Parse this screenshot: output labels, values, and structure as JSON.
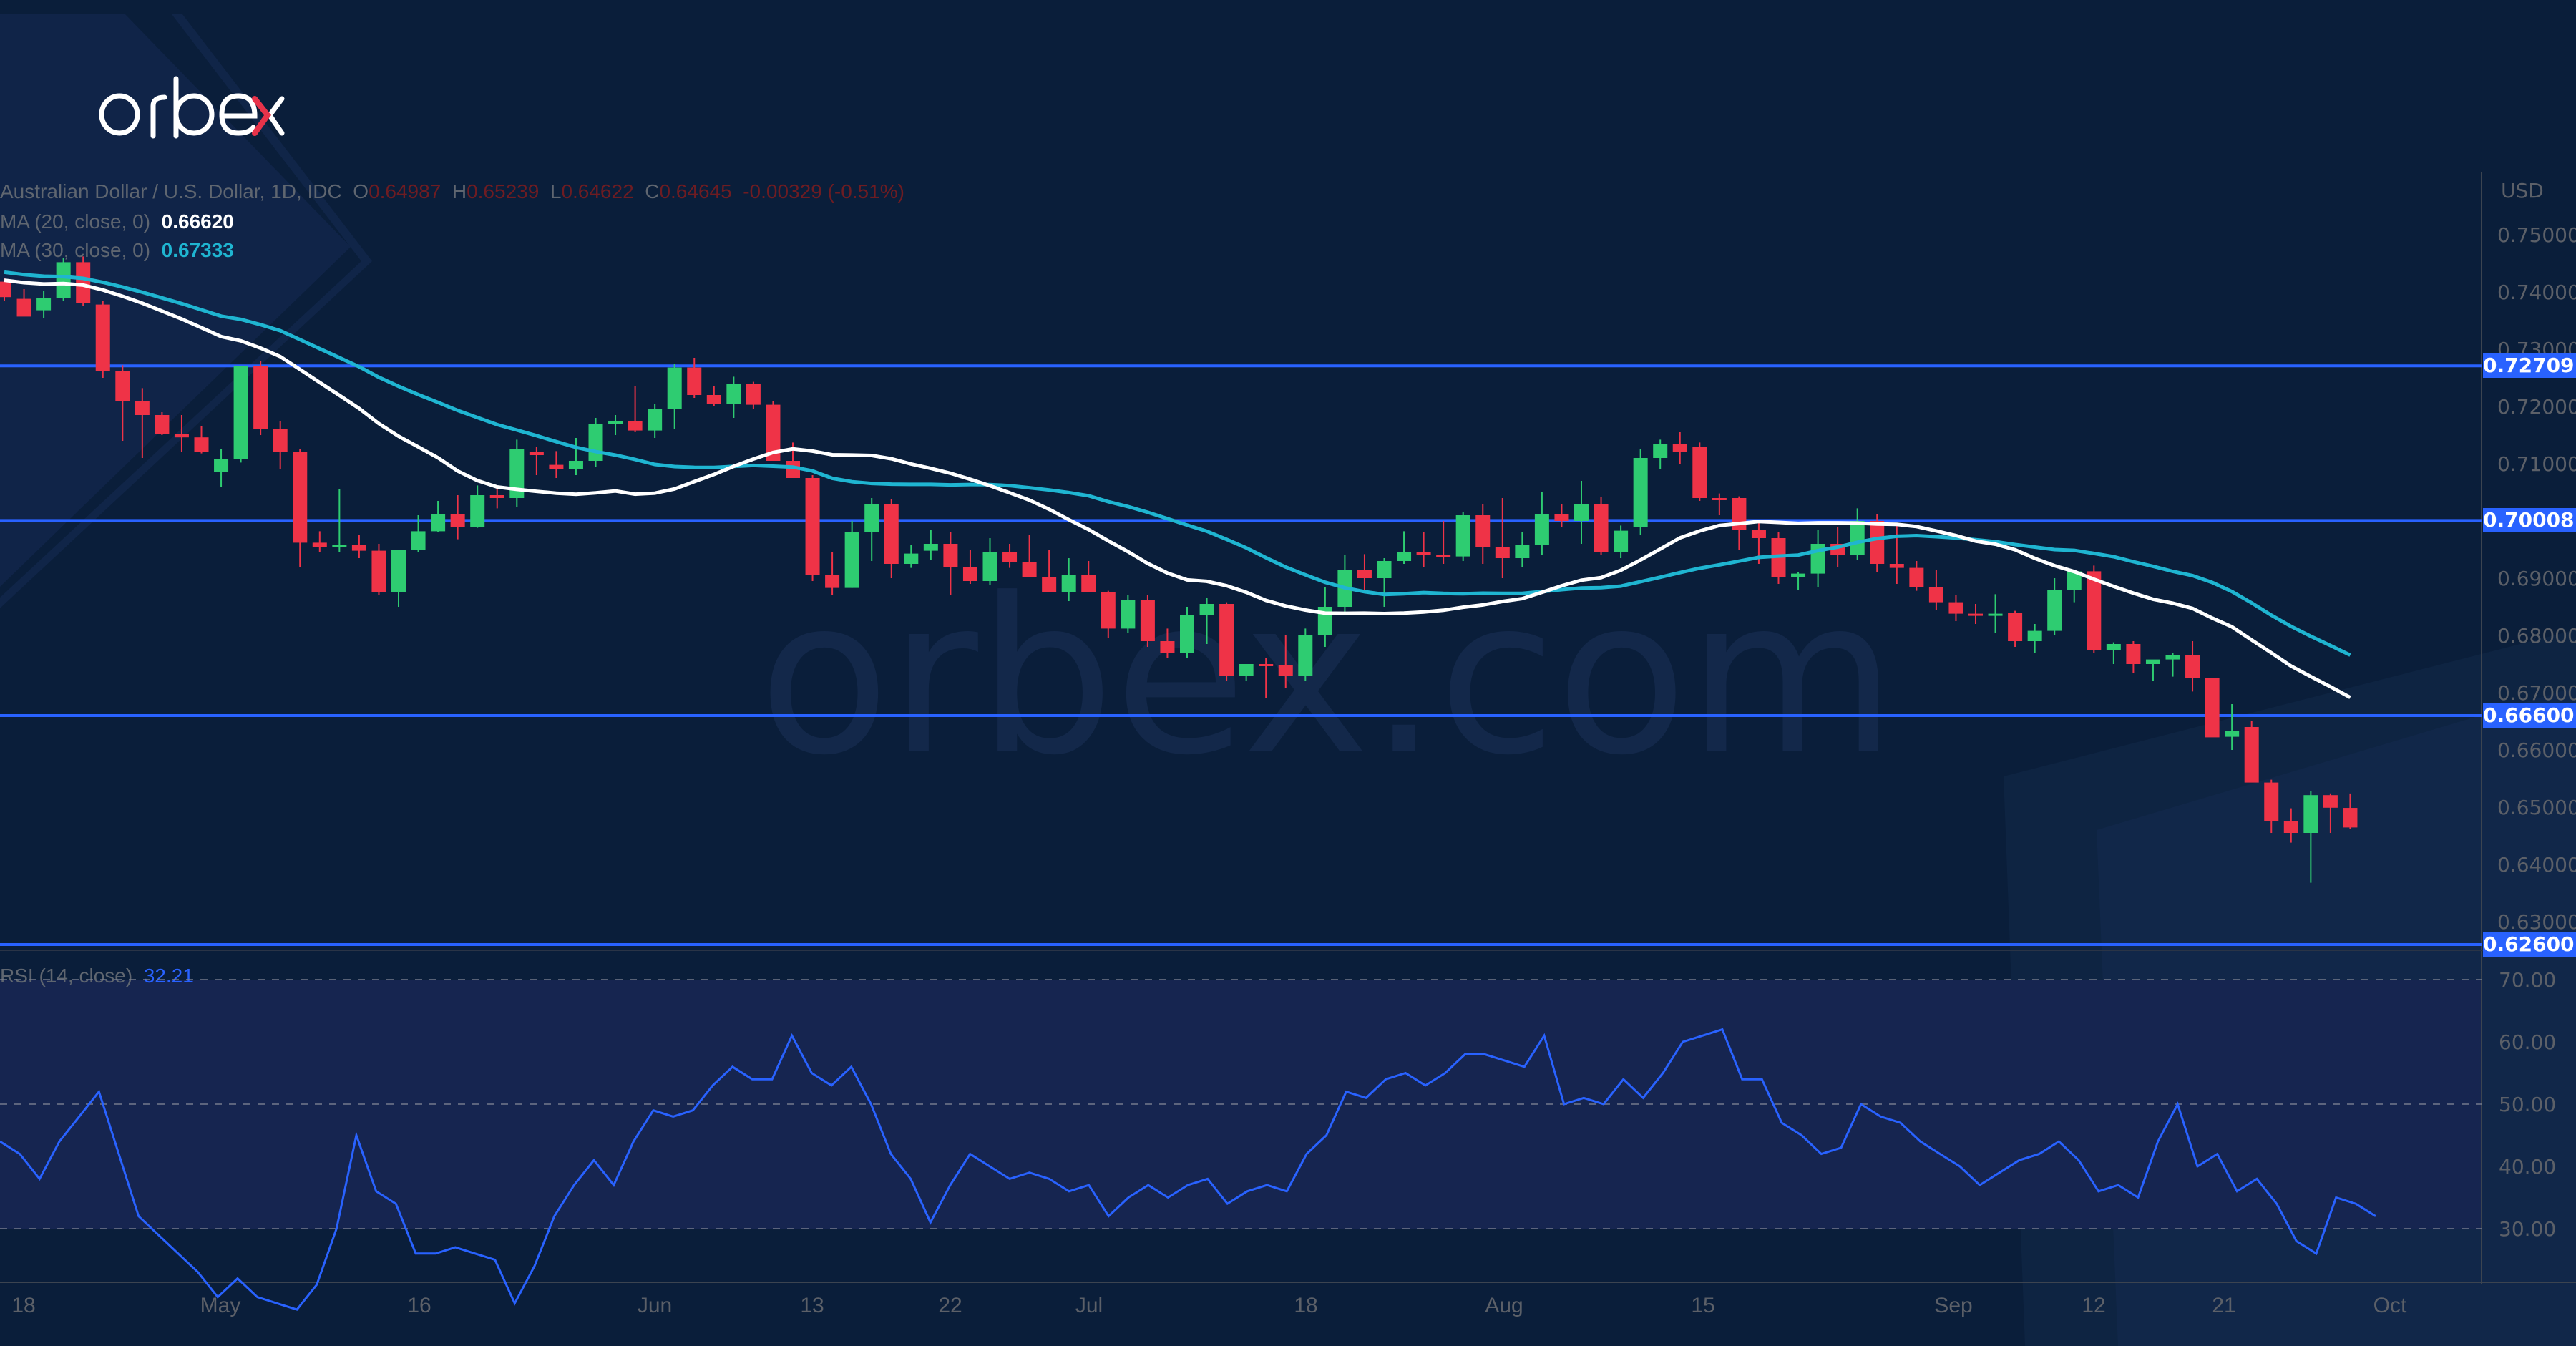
{
  "brand": {
    "name": "orbex",
    "watermark": "orbex.com",
    "accent": "#e8334a"
  },
  "legend": {
    "symbol": "Australian Dollar / U.S. Dollar, 1D, IDC",
    "open_label": "O",
    "open": "0.64987",
    "high_label": "H",
    "high": "0.65239",
    "low_label": "L",
    "low": "0.64622",
    "close_label": "C",
    "close": "0.64645",
    "change": "-0.00329 (-0.51%)",
    "ma20_label": "MA (20, close, 0)",
    "ma20_value": "0.66620",
    "ma30_label": "MA (30, close, 0)",
    "ma30_value": "0.67333",
    "rsi_label": "RSI (14, close)",
    "rsi_value": "32.21"
  },
  "price_axis": {
    "currency": "USD",
    "ticks": [
      "0.75000",
      "0.74000",
      "0.73000",
      "0.72000",
      "0.71000",
      "0.69000",
      "0.68000",
      "0.67000",
      "0.66000",
      "0.65000",
      "0.64000",
      "0.63000"
    ],
    "levels": [
      "0.72709",
      "0.70008",
      "0.66600",
      "0.62600"
    ]
  },
  "rsi_axis": {
    "ticks": [
      "70.00",
      "60.00",
      "50.00",
      "40.00",
      "30.00"
    ]
  },
  "time_axis": {
    "labels": [
      "18",
      "May",
      "16",
      "Jun",
      "13",
      "22",
      "Jul",
      "18",
      "Aug",
      "15",
      "Sep",
      "12",
      "21",
      "Oct"
    ]
  },
  "colors": {
    "up": "#2ecc71",
    "down": "#ef3347",
    "ma20": "#ffffff",
    "ma30": "#1fb5d1",
    "rsi": "#2962ff",
    "level": "#2962ff",
    "background": "#0a1e3a"
  },
  "chart_data": [
    {
      "type": "candlestick",
      "title": "Australian Dollar / U.S. Dollar, 1D, IDC",
      "ylabel": "USD",
      "ylim": [
        0.625,
        0.755
      ],
      "x_tick_labels": [
        "18",
        "May",
        "16",
        "Jun",
        "13",
        "22",
        "Jul",
        "18",
        "Aug",
        "15",
        "Sep",
        "12",
        "21",
        "Oct"
      ],
      "horizontal_levels": [
        0.72709,
        0.70008,
        0.666,
        0.626
      ],
      "last_ohlc": {
        "open": 0.64987,
        "high": 0.65239,
        "low": 0.64622,
        "close": 0.64645,
        "change": -0.00329,
        "change_pct": -0.51
      },
      "ohlc": [
        [
          0.7418,
          0.7425,
          0.7385,
          0.7391
        ],
        [
          0.7388,
          0.7405,
          0.7368,
          0.7357
        ],
        [
          0.7368,
          0.7402,
          0.7355,
          0.739
        ],
        [
          0.739,
          0.746,
          0.7385,
          0.7452
        ],
        [
          0.7452,
          0.7462,
          0.7375,
          0.738
        ],
        [
          0.7378,
          0.7385,
          0.725,
          0.7262
        ],
        [
          0.7262,
          0.7272,
          0.714,
          0.721
        ],
        [
          0.721,
          0.7232,
          0.711,
          0.7185
        ],
        [
          0.7185,
          0.719,
          0.715,
          0.7152
        ],
        [
          0.7152,
          0.7185,
          0.712,
          0.7146
        ],
        [
          0.7146,
          0.7165,
          0.7118,
          0.712
        ],
        [
          0.7085,
          0.7125,
          0.706,
          0.7108
        ],
        [
          0.7108,
          0.721,
          0.7102,
          0.727
        ],
        [
          0.727,
          0.728,
          0.715,
          0.716
        ],
        [
          0.716,
          0.7175,
          0.709,
          0.712
        ],
        [
          0.712,
          0.7125,
          0.692,
          0.6962
        ],
        [
          0.6962,
          0.6982,
          0.6945,
          0.6955
        ],
        [
          0.6955,
          0.7055,
          0.6945,
          0.6958
        ],
        [
          0.6958,
          0.6975,
          0.6935,
          0.6948
        ],
        [
          0.6948,
          0.696,
          0.687,
          0.6875
        ],
        [
          0.6875,
          0.6922,
          0.685,
          0.695
        ],
        [
          0.695,
          0.701,
          0.6945,
          0.6982
        ],
        [
          0.6982,
          0.7035,
          0.698,
          0.7012
        ],
        [
          0.7012,
          0.7045,
          0.6968,
          0.699
        ],
        [
          0.699,
          0.7062,
          0.6988,
          0.7045
        ],
        [
          0.7045,
          0.706,
          0.7022,
          0.704
        ],
        [
          0.704,
          0.7142,
          0.7025,
          0.7125
        ],
        [
          0.712,
          0.713,
          0.708,
          0.7115
        ],
        [
          0.7098,
          0.7122,
          0.7075,
          0.709
        ],
        [
          0.709,
          0.7145,
          0.708,
          0.7105
        ],
        [
          0.7105,
          0.718,
          0.7095,
          0.717
        ],
        [
          0.717,
          0.7185,
          0.715,
          0.7175
        ],
        [
          0.7175,
          0.7235,
          0.7155,
          0.7158
        ],
        [
          0.7158,
          0.7205,
          0.7145,
          0.7195
        ],
        [
          0.7195,
          0.7275,
          0.716,
          0.7268
        ],
        [
          0.7268,
          0.7285,
          0.7215,
          0.722
        ],
        [
          0.722,
          0.7235,
          0.72,
          0.7205
        ],
        [
          0.7205,
          0.7252,
          0.718,
          0.724
        ],
        [
          0.724,
          0.7243,
          0.7195,
          0.7203
        ],
        [
          0.7203,
          0.721,
          0.7105,
          0.7105
        ],
        [
          0.7105,
          0.7137,
          0.708,
          0.7075
        ],
        [
          0.7075,
          0.708,
          0.6895,
          0.6905
        ],
        [
          0.6905,
          0.6945,
          0.687,
          0.6883
        ],
        [
          0.6883,
          0.7,
          0.6883,
          0.698
        ],
        [
          0.698,
          0.704,
          0.693,
          0.703
        ],
        [
          0.703,
          0.7038,
          0.69,
          0.6925
        ],
        [
          0.6925,
          0.6958,
          0.6918,
          0.6943
        ],
        [
          0.6948,
          0.6985,
          0.6932,
          0.696
        ],
        [
          0.696,
          0.698,
          0.687,
          0.692
        ],
        [
          0.692,
          0.695,
          0.689,
          0.6895
        ],
        [
          0.6895,
          0.697,
          0.6888,
          0.6945
        ],
        [
          0.6945,
          0.696,
          0.6918,
          0.6928
        ],
        [
          0.6928,
          0.6975,
          0.6905,
          0.6902
        ],
        [
          0.6902,
          0.695,
          0.689,
          0.6875
        ],
        [
          0.6875,
          0.6935,
          0.686,
          0.6905
        ],
        [
          0.6905,
          0.693,
          0.6878,
          0.6875
        ],
        [
          0.6875,
          0.6878,
          0.6795,
          0.6812
        ],
        [
          0.6812,
          0.687,
          0.6805,
          0.6862
        ],
        [
          0.6862,
          0.687,
          0.678,
          0.679
        ],
        [
          0.679,
          0.6812,
          0.676,
          0.677
        ],
        [
          0.677,
          0.685,
          0.676,
          0.6835
        ],
        [
          0.6835,
          0.6865,
          0.6785,
          0.6855
        ],
        [
          0.6855,
          0.6858,
          0.672,
          0.673
        ],
        [
          0.673,
          0.6745,
          0.672,
          0.675
        ],
        [
          0.675,
          0.676,
          0.669,
          0.6748
        ],
        [
          0.6748,
          0.68,
          0.6708,
          0.673
        ],
        [
          0.673,
          0.6812,
          0.672,
          0.68
        ],
        [
          0.68,
          0.6885,
          0.678,
          0.685
        ],
        [
          0.685,
          0.694,
          0.684,
          0.6915
        ],
        [
          0.6915,
          0.6942,
          0.6875,
          0.69
        ],
        [
          0.69,
          0.6935,
          0.685,
          0.693
        ],
        [
          0.693,
          0.6982,
          0.6925,
          0.6945
        ],
        [
          0.6945,
          0.698,
          0.692,
          0.694
        ],
        [
          0.694,
          0.7,
          0.6925,
          0.6938
        ],
        [
          0.6938,
          0.7015,
          0.693,
          0.701
        ],
        [
          0.701,
          0.703,
          0.6925,
          0.6955
        ],
        [
          0.6955,
          0.704,
          0.69,
          0.6935
        ],
        [
          0.6935,
          0.698,
          0.692,
          0.6958
        ],
        [
          0.6958,
          0.705,
          0.694,
          0.7012
        ],
        [
          0.7012,
          0.703,
          0.699,
          0.7
        ],
        [
          0.7,
          0.707,
          0.696,
          0.703
        ],
        [
          0.703,
          0.7042,
          0.694,
          0.6945
        ],
        [
          0.6945,
          0.6992,
          0.6935,
          0.6983
        ],
        [
          0.699,
          0.7125,
          0.6975,
          0.711
        ],
        [
          0.711,
          0.7142,
          0.709,
          0.7135
        ],
        [
          0.7135,
          0.7155,
          0.71,
          0.712
        ],
        [
          0.713,
          0.7137,
          0.7035,
          0.704
        ],
        [
          0.704,
          0.7048,
          0.701,
          0.7038
        ],
        [
          0.704,
          0.7043,
          0.695,
          0.6985
        ],
        [
          0.6985,
          0.7,
          0.6925,
          0.697
        ],
        [
          0.697,
          0.698,
          0.689,
          0.6902
        ],
        [
          0.6902,
          0.691,
          0.688,
          0.6908
        ],
        [
          0.6908,
          0.6985,
          0.6885,
          0.696
        ],
        [
          0.696,
          0.699,
          0.692,
          0.694
        ],
        [
          0.694,
          0.7022,
          0.6932,
          0.7
        ],
        [
          0.7,
          0.7012,
          0.691,
          0.6925
        ],
        [
          0.6925,
          0.6995,
          0.689,
          0.6918
        ],
        [
          0.6918,
          0.693,
          0.6878,
          0.6885
        ],
        [
          0.6885,
          0.6915,
          0.6845,
          0.6858
        ],
        [
          0.6858,
          0.687,
          0.6825,
          0.6838
        ],
        [
          0.6838,
          0.6855,
          0.682,
          0.6835
        ],
        [
          0.6835,
          0.6872,
          0.6805,
          0.6838
        ],
        [
          0.684,
          0.6843,
          0.678,
          0.679
        ],
        [
          0.679,
          0.682,
          0.677,
          0.6808
        ],
        [
          0.6808,
          0.69,
          0.68,
          0.688
        ],
        [
          0.688,
          0.691,
          0.6858,
          0.6912
        ],
        [
          0.6912,
          0.6922,
          0.677,
          0.6775
        ],
        [
          0.6775,
          0.6788,
          0.675,
          0.6785
        ],
        [
          0.6785,
          0.679,
          0.6735,
          0.675
        ],
        [
          0.675,
          0.6755,
          0.672,
          0.6758
        ],
        [
          0.6758,
          0.677,
          0.6728,
          0.6765
        ],
        [
          0.6765,
          0.679,
          0.6702,
          0.6725
        ],
        [
          0.6725,
          0.6702,
          0.6628,
          0.6622
        ],
        [
          0.6623,
          0.668,
          0.66,
          0.6633
        ],
        [
          0.664,
          0.665,
          0.655,
          0.6543
        ],
        [
          0.6543,
          0.6548,
          0.6455,
          0.6475
        ],
        [
          0.6475,
          0.6498,
          0.6438,
          0.6455
        ],
        [
          0.6455,
          0.6528,
          0.6368,
          0.6521
        ],
        [
          0.6521,
          0.6524,
          0.6455,
          0.6499
        ],
        [
          0.64987,
          0.65239,
          0.64622,
          0.64645
        ]
      ],
      "series": [
        {
          "name": "MA (20, close, 0)",
          "last": 0.6662,
          "color": "#ffffff"
        },
        {
          "name": "MA (30, close, 0)",
          "last": 0.67333,
          "color": "#1fb5d1"
        }
      ]
    },
    {
      "type": "line",
      "title": "RSI (14, close)",
      "ylim": [
        20,
        75
      ],
      "guide_levels": [
        70,
        50,
        30
      ],
      "last": 32.21,
      "values": [
        44,
        42,
        38,
        44,
        48,
        52,
        42,
        32,
        29,
        26,
        23,
        19,
        22,
        19,
        18,
        17,
        21,
        30,
        45,
        36,
        34,
        26,
        26,
        27,
        26,
        25,
        18,
        24,
        32,
        37,
        41,
        37,
        44,
        49,
        48,
        49,
        53,
        56,
        54,
        54,
        61,
        55,
        53,
        56,
        50,
        42,
        38,
        31,
        37,
        42,
        40,
        38,
        39,
        38,
        36,
        37,
        32,
        35,
        37,
        35,
        37,
        38,
        34,
        36,
        37,
        36,
        42,
        45,
        52,
        51,
        54,
        55,
        53,
        55,
        58,
        58,
        57,
        56,
        61,
        50,
        51,
        50,
        54,
        51,
        55,
        60,
        61,
        62,
        54,
        54,
        47,
        45,
        42,
        43,
        50,
        48,
        47,
        44,
        42,
        40,
        37,
        39,
        41,
        42,
        44,
        41,
        36,
        37,
        35,
        44,
        50,
        40,
        42,
        36,
        38,
        34,
        28,
        26,
        35,
        34,
        32
      ]
    }
  ]
}
